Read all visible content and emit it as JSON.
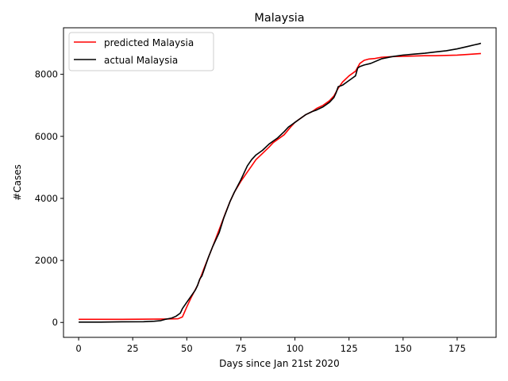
{
  "chart_data": {
    "type": "line",
    "title": "Malaysia",
    "xlabel": "Days since Jan 21st 2020",
    "ylabel": "#Cases",
    "xlim": [
      -7,
      193
    ],
    "ylim": [
      -480,
      9500
    ],
    "xticks": [
      0,
      25,
      50,
      75,
      100,
      125,
      150,
      175
    ],
    "yticks": [
      0,
      2000,
      4000,
      6000,
      8000
    ],
    "grid": false,
    "legend_position": "top-left",
    "series": [
      {
        "name": "predicted Malaysia",
        "color": "#ff0000",
        "x": [
          0,
          20,
          40,
          46,
          48,
          50,
          52,
          55,
          58,
          60,
          62,
          65,
          68,
          70,
          72,
          75,
          78,
          80,
          82,
          85,
          88,
          90,
          92,
          95,
          98,
          100,
          103,
          105,
          108,
          110,
          113,
          116,
          118,
          120,
          122,
          125,
          128,
          130,
          132,
          134,
          137,
          140,
          145,
          150,
          155,
          160,
          165,
          170,
          175,
          180,
          186
        ],
        "y": [
          100,
          100,
          110,
          120,
          180,
          500,
          800,
          1200,
          1750,
          2100,
          2450,
          3000,
          3550,
          3900,
          4200,
          4550,
          4850,
          5050,
          5250,
          5450,
          5650,
          5800,
          5900,
          6050,
          6300,
          6450,
          6600,
          6700,
          6800,
          6900,
          7000,
          7150,
          7300,
          7550,
          7750,
          7950,
          8100,
          8350,
          8450,
          8490,
          8510,
          8550,
          8570,
          8580,
          8590,
          8600,
          8600,
          8610,
          8620,
          8640,
          8670
        ]
      },
      {
        "name": "actual Malaysia",
        "color": "#000000",
        "x": [
          0,
          10,
          20,
          30,
          35,
          38,
          40,
          43,
          45,
          47,
          48,
          50,
          52,
          54,
          55,
          56,
          57,
          58,
          59,
          60,
          62,
          65,
          67,
          70,
          72,
          75,
          78,
          80,
          82,
          85,
          88,
          90,
          92,
          95,
          97,
          98,
          100,
          102,
          105,
          108,
          110,
          113,
          116,
          118,
          119,
          120,
          122,
          124,
          126,
          127,
          128,
          129,
          130,
          132,
          135,
          140,
          145,
          150,
          155,
          160,
          165,
          170,
          175,
          180,
          183,
          185,
          186
        ],
        "y": [
          10,
          10,
          20,
          25,
          40,
          60,
          100,
          140,
          200,
          300,
          450,
          650,
          850,
          1050,
          1200,
          1400,
          1500,
          1700,
          1900,
          2100,
          2450,
          2900,
          3350,
          3900,
          4200,
          4600,
          5050,
          5250,
          5400,
          5550,
          5750,
          5850,
          5950,
          6150,
          6300,
          6350,
          6450,
          6550,
          6700,
          6800,
          6850,
          6950,
          7100,
          7250,
          7400,
          7600,
          7650,
          7750,
          7850,
          7900,
          7950,
          8200,
          8250,
          8300,
          8350,
          8500,
          8570,
          8620,
          8650,
          8680,
          8720,
          8760,
          8820,
          8900,
          8950,
          8980,
          9000
        ]
      }
    ]
  }
}
